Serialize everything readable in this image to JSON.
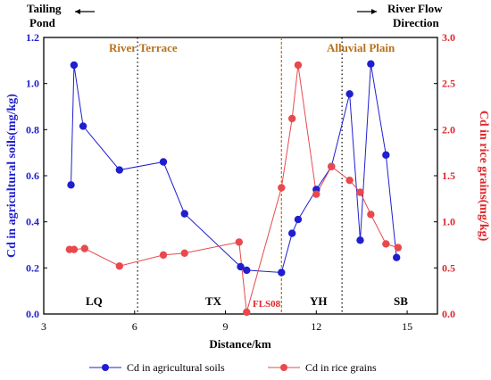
{
  "chart_data": {
    "type": "line",
    "xlabel": "Distance/km",
    "ylabel_left": "Cd in agricultural soils(mg/kg)",
    "ylabel_right": "Cd in rice grains(mg/kg)",
    "xlim": [
      3,
      16
    ],
    "ylim_left": [
      0,
      1.2
    ],
    "ylim_right": [
      0,
      3.0
    ],
    "x_ticks": [
      3,
      6,
      9,
      12,
      15
    ],
    "y_ticks_left": [
      "0.0",
      "0.2",
      "0.4",
      "0.6",
      "0.8",
      "1.0",
      "1.2"
    ],
    "y_ticks_right": [
      "0.0",
      "0.5",
      "1.0",
      "1.5",
      "2.0",
      "2.5",
      "3.0"
    ],
    "annotations": {
      "tailing_pond": [
        "Tailing",
        "Pond"
      ],
      "river_flow": [
        "River Flow",
        "Direction"
      ],
      "river_terrace": "River Terrace",
      "alluvial_plain": "Alluvial Plain",
      "fls08": "FLS08",
      "regions": [
        "LQ",
        "TX",
        "YH",
        "SB"
      ]
    },
    "dividers_x": [
      6.1,
      10.85,
      12.85
    ],
    "series": [
      {
        "name": "Cd in agricultural soils",
        "axis": "left",
        "color": "#1f1fcf",
        "points": [
          [
            3.9,
            0.56
          ],
          [
            4.0,
            1.08
          ],
          [
            4.3,
            0.815
          ],
          [
            5.5,
            0.625
          ],
          [
            6.95,
            0.66
          ],
          [
            7.65,
            0.435
          ],
          [
            9.5,
            0.205
          ],
          [
            9.7,
            0.19
          ],
          [
            10.85,
            0.18
          ],
          [
            11.2,
            0.35
          ],
          [
            11.4,
            0.41
          ],
          [
            12.0,
            0.54
          ],
          [
            12.5,
            0.64
          ],
          [
            13.1,
            0.955
          ],
          [
            13.45,
            0.32
          ],
          [
            13.8,
            1.085
          ],
          [
            14.3,
            0.69
          ],
          [
            14.65,
            0.245
          ]
        ]
      },
      {
        "name": "Cd in rice grains",
        "axis": "right",
        "color": "#e8494d",
        "points": [
          [
            3.85,
            0.7
          ],
          [
            4.0,
            0.7
          ],
          [
            4.35,
            0.71
          ],
          [
            5.5,
            0.52
          ],
          [
            6.95,
            0.64
          ],
          [
            7.65,
            0.66
          ],
          [
            9.45,
            0.78
          ],
          [
            9.7,
            0.02
          ],
          [
            10.85,
            1.37
          ],
          [
            11.2,
            2.12
          ],
          [
            11.4,
            2.7
          ],
          [
            12.0,
            1.3
          ],
          [
            12.5,
            1.6
          ],
          [
            13.1,
            1.45
          ],
          [
            13.45,
            1.32
          ],
          [
            13.8,
            1.08
          ],
          [
            14.3,
            0.76
          ],
          [
            14.7,
            0.72
          ]
        ]
      }
    ]
  }
}
